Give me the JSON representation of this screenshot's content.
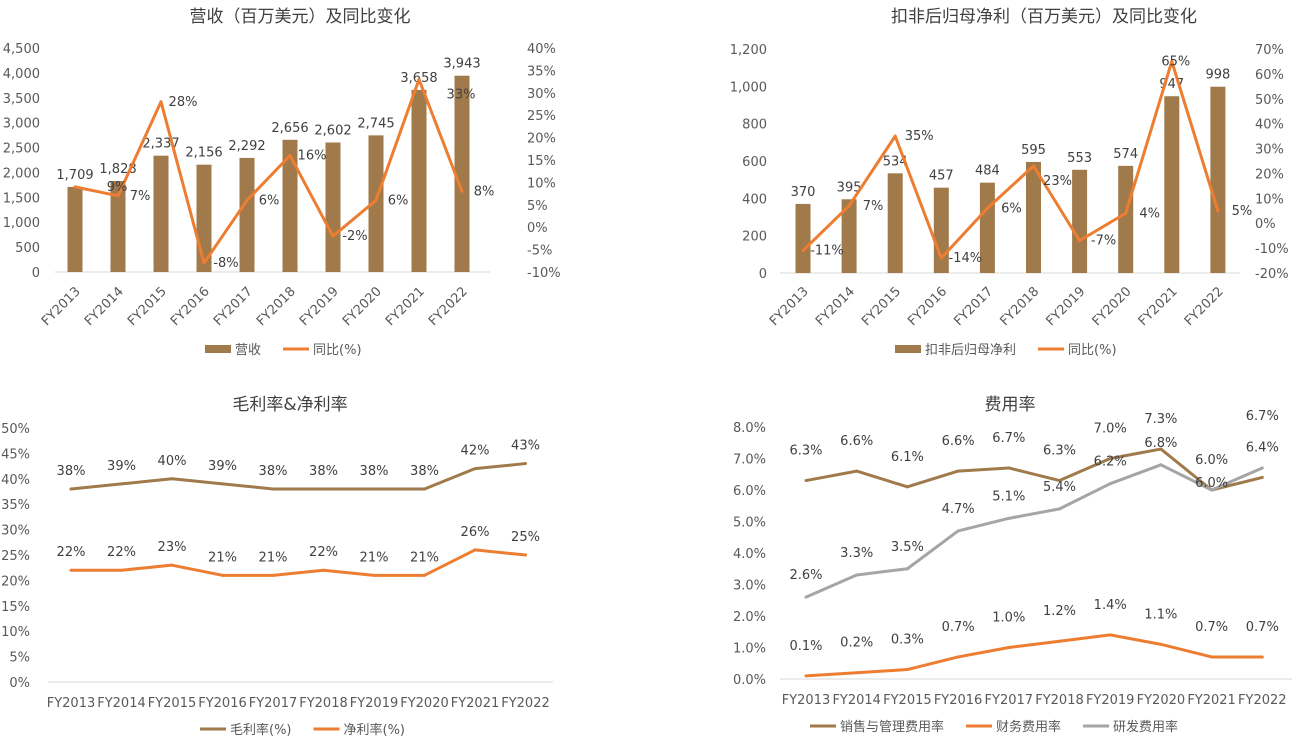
{
  "chart_data": [
    {
      "type": "bar+line",
      "title": "营收（百万美元）及同比变化",
      "categories": [
        "FY2013",
        "FY2014",
        "FY2015",
        "FY2016",
        "FY2017",
        "FY2018",
        "FY2019",
        "FY2020",
        "FY2021",
        "FY2022"
      ],
      "series": [
        {
          "name": "营收",
          "kind": "bar",
          "axis": "left",
          "values": [
            1709,
            1828,
            2337,
            2156,
            2292,
            2656,
            2602,
            2745,
            3658,
            3943
          ],
          "labels": [
            "1,709",
            "1,828",
            "2,337",
            "2,156",
            "2,292",
            "2,656",
            "2,602",
            "2,745",
            "3,658",
            "3,943"
          ],
          "color": "#A07A4A"
        },
        {
          "name": "同比(%)",
          "kind": "line",
          "axis": "right",
          "values": [
            9,
            7,
            28,
            -8,
            6,
            16,
            -2,
            6,
            33,
            8
          ],
          "labels": [
            "9%",
            "7%",
            "28%",
            "-8%",
            "6%",
            "16%",
            "-2%",
            "6%",
            "33%",
            "8%"
          ],
          "color": "#ED7D31"
        }
      ],
      "left_axis": {
        "min": 0,
        "max": 4500,
        "step": 500,
        "ticks": [
          "0",
          "500",
          "1,000",
          "1,500",
          "2,000",
          "2,500",
          "3,000",
          "3,500",
          "4,000",
          "4,500"
        ]
      },
      "right_axis": {
        "min": -10,
        "max": 40,
        "step": 5,
        "ticks": [
          "-10%",
          "-5%",
          "0%",
          "5%",
          "10%",
          "15%",
          "20%",
          "25%",
          "30%",
          "35%",
          "40%"
        ]
      },
      "xtick_rotation": "rotated",
      "legend": "bottom",
      "grid": false
    },
    {
      "type": "bar+line",
      "title": "扣非后归母净利（百万美元）及同比变化",
      "categories": [
        "FY2013",
        "FY2014",
        "FY2015",
        "FY2016",
        "FY2017",
        "FY2018",
        "FY2019",
        "FY2020",
        "FY2021",
        "FY2022"
      ],
      "series": [
        {
          "name": "扣非后归母净利",
          "kind": "bar",
          "axis": "left",
          "values": [
            370,
            395,
            534,
            457,
            484,
            595,
            553,
            574,
            947,
            998
          ],
          "labels": [
            "370",
            "395",
            "534",
            "457",
            "484",
            "595",
            "553",
            "574",
            "947",
            "998"
          ],
          "color": "#A07A4A"
        },
        {
          "name": "同比(%)",
          "kind": "line",
          "axis": "right",
          "values": [
            -11,
            7,
            35,
            -14,
            6,
            23,
            -7,
            4,
            65,
            5
          ],
          "labels": [
            "-11%",
            "7%",
            "35%",
            "-14%",
            "6%",
            "23%",
            "-7%",
            "4%",
            "65%",
            "5%"
          ],
          "color": "#ED7D31"
        }
      ],
      "left_axis": {
        "min": 0,
        "max": 1200,
        "step": 200,
        "ticks": [
          "0",
          "200",
          "400",
          "600",
          "800",
          "1,000",
          "1,200"
        ]
      },
      "right_axis": {
        "min": -20,
        "max": 70,
        "step": 10,
        "ticks": [
          "-20%",
          "-10%",
          "0%",
          "10%",
          "20%",
          "30%",
          "40%",
          "50%",
          "60%",
          "70%"
        ]
      },
      "xtick_rotation": "rotated",
      "legend": "bottom",
      "grid": false
    },
    {
      "type": "line",
      "title": "毛利率&净利率",
      "categories": [
        "FY2013",
        "FY2014",
        "FY2015",
        "FY2016",
        "FY2017",
        "FY2018",
        "FY2019",
        "FY2020",
        "FY2021",
        "FY2022"
      ],
      "series": [
        {
          "name": "毛利率(%)",
          "kind": "line",
          "axis": "left",
          "values": [
            38,
            39,
            40,
            39,
            38,
            38,
            38,
            38,
            42,
            43
          ],
          "labels": [
            "38%",
            "39%",
            "40%",
            "39%",
            "38%",
            "38%",
            "38%",
            "38%",
            "42%",
            "43%"
          ],
          "color": "#A07A4A"
        },
        {
          "name": "净利率(%)",
          "kind": "line",
          "axis": "left",
          "values": [
            22,
            22,
            23,
            21,
            21,
            22,
            21,
            21,
            26,
            25
          ],
          "labels": [
            "22%",
            "22%",
            "23%",
            "21%",
            "21%",
            "22%",
            "21%",
            "21%",
            "26%",
            "25%"
          ],
          "color": "#ED7D31"
        }
      ],
      "left_axis": {
        "min": 0,
        "max": 50,
        "step": 5,
        "ticks": [
          "0%",
          "5%",
          "10%",
          "15%",
          "20%",
          "25%",
          "30%",
          "35%",
          "40%",
          "45%",
          "50%"
        ]
      },
      "legend": "bottom",
      "grid": false
    },
    {
      "type": "line",
      "title": "费用率",
      "categories": [
        "FY2013",
        "FY2014",
        "FY2015",
        "FY2016",
        "FY2017",
        "FY2018",
        "FY2019",
        "FY2020",
        "FY2021",
        "FY2022"
      ],
      "series": [
        {
          "name": "销售与管理费用率",
          "kind": "line",
          "axis": "left",
          "values": [
            6.3,
            6.6,
            6.1,
            6.6,
            6.7,
            6.3,
            7.0,
            7.3,
            6.0,
            6.4
          ],
          "labels": [
            "6.3%",
            "6.6%",
            "6.1%",
            "6.6%",
            "6.7%",
            "6.3%",
            "7.0%",
            "7.3%",
            "6.0%",
            "6.4%"
          ],
          "color": "#A07A4A"
        },
        {
          "name": "财务费用率",
          "kind": "line",
          "axis": "left",
          "values": [
            0.1,
            0.2,
            0.3,
            0.7,
            1.0,
            1.2,
            1.4,
            1.1,
            0.7,
            0.7
          ],
          "labels": [
            "0.1%",
            "0.2%",
            "0.3%",
            "0.7%",
            "1.0%",
            "1.2%",
            "1.4%",
            "1.1%",
            "0.7%",
            "0.7%"
          ],
          "color": "#ED7D31"
        },
        {
          "name": "研发费用率",
          "kind": "line",
          "axis": "left",
          "values": [
            2.6,
            3.3,
            3.5,
            4.7,
            5.1,
            5.4,
            6.2,
            6.8,
            6.0,
            6.7
          ],
          "labels": [
            "2.6%",
            "3.3%",
            "3.5%",
            "4.7%",
            "5.1%",
            "5.4%",
            "6.2%",
            "6.8%",
            "6.0%",
            "6.7%"
          ],
          "color": "#A5A5A5"
        }
      ],
      "left_axis": {
        "min": 0,
        "max": 8,
        "step": 1,
        "ticks": [
          "0.0%",
          "1.0%",
          "2.0%",
          "3.0%",
          "4.0%",
          "5.0%",
          "6.0%",
          "7.0%",
          "8.0%"
        ]
      },
      "legend": "bottom",
      "grid": false
    }
  ]
}
